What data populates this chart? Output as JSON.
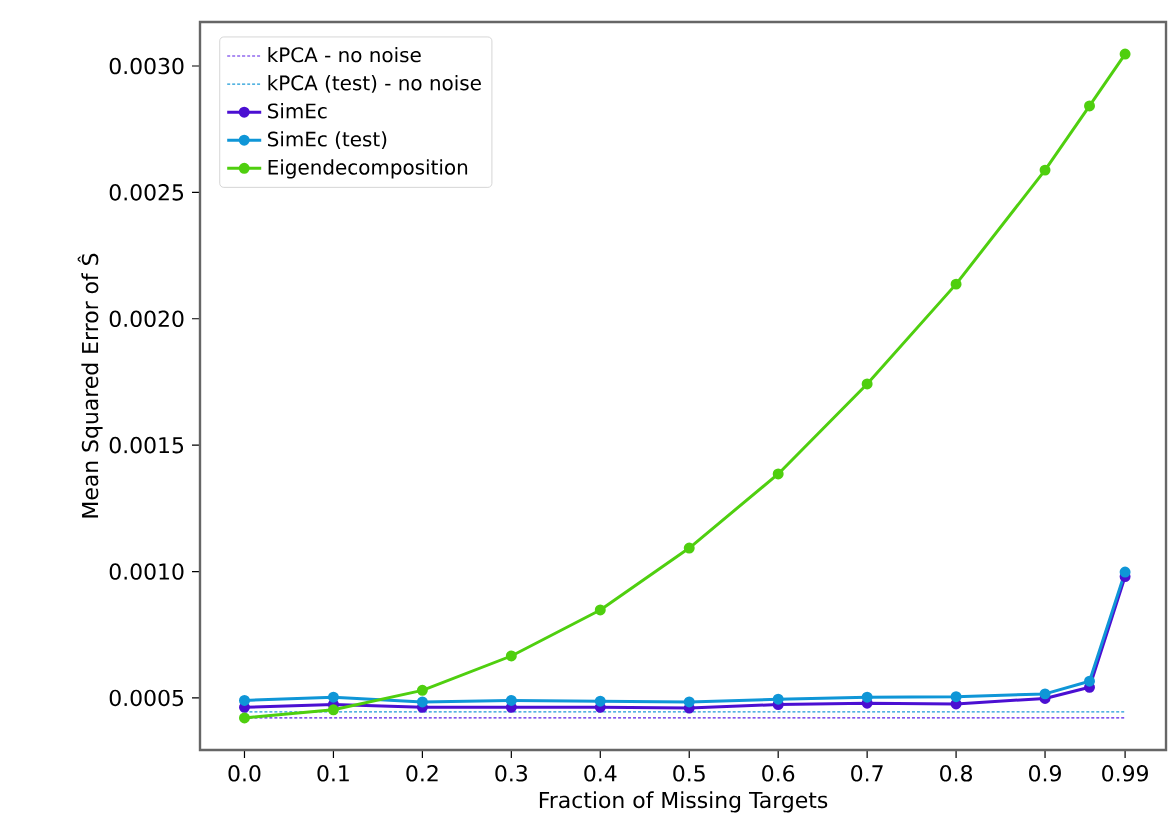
{
  "chart_data": {
    "type": "line",
    "xlabel": "Fraction of Missing Targets",
    "ylabel": "Mean Squared Error of Ŝ",
    "xlim": [
      -0.05,
      1.036
    ],
    "ylim": [
      0.000294,
      0.003174
    ],
    "xticks": [
      {
        "value": 0.0,
        "label": "0.0"
      },
      {
        "value": 0.1,
        "label": "0.1"
      },
      {
        "value": 0.2,
        "label": "0.2"
      },
      {
        "value": 0.3,
        "label": "0.3"
      },
      {
        "value": 0.4,
        "label": "0.4"
      },
      {
        "value": 0.5,
        "label": "0.5"
      },
      {
        "value": 0.6,
        "label": "0.6"
      },
      {
        "value": 0.7,
        "label": "0.7"
      },
      {
        "value": 0.8,
        "label": "0.8"
      },
      {
        "value": 0.9,
        "label": "0.9"
      },
      {
        "value": 0.99,
        "label": "0.99"
      }
    ],
    "yticks": [
      0.0005,
      {
        "value": 0.001,
        "label": "0.0010"
      },
      {
        "value": 0.0015,
        "label": "0.0015"
      },
      {
        "value": 0.002,
        "label": "0.0020"
      },
      {
        "value": 0.0025,
        "label": "0.0025"
      },
      {
        "value": 0.003,
        "label": "0.0030"
      }
    ],
    "legend": "top left",
    "grid": false,
    "series": [
      {
        "name": "kPCA - no noise",
        "color": "#5a1ee6",
        "x": [
          0.0,
          0.99
        ],
        "values": [
          0.000421,
          0.000421
        ],
        "marker": "none",
        "line_style": "dashed"
      },
      {
        "name": "kPCA (test) - no noise",
        "color": "#1e9bd7",
        "x": [
          0.0,
          0.99
        ],
        "values": [
          0.000445,
          0.000445
        ],
        "marker": "none",
        "line_style": "dashed"
      },
      {
        "name": "SimEc",
        "color": "#4b0fd2",
        "x": [
          0.0,
          0.1,
          0.2,
          0.3,
          0.4,
          0.5,
          0.6,
          0.7,
          0.8,
          0.9,
          0.95,
          0.99
        ],
        "values": [
          0.000463,
          0.000474,
          0.000463,
          0.000463,
          0.000463,
          0.00046,
          0.000474,
          0.000479,
          0.000476,
          0.000498,
          0.000542,
          0.00098
        ],
        "marker": "circle",
        "line_style": "solid"
      },
      {
        "name": "SimEc (test)",
        "color": "#0f96d7",
        "x": [
          0.0,
          0.1,
          0.2,
          0.3,
          0.4,
          0.5,
          0.6,
          0.7,
          0.8,
          0.9,
          0.95,
          0.99
        ],
        "values": [
          0.00049,
          0.000503,
          0.000484,
          0.00049,
          0.000487,
          0.000484,
          0.000495,
          0.000503,
          0.000505,
          0.000516,
          0.000566,
          0.000998
        ],
        "marker": "circle",
        "line_style": "solid"
      },
      {
        "name": "Eigendecomposition",
        "color": "#4fcf0f",
        "x": [
          0.0,
          0.1,
          0.2,
          0.3,
          0.4,
          0.5,
          0.6,
          0.7,
          0.8,
          0.9,
          0.95,
          0.99
        ],
        "values": [
          0.000421,
          0.000453,
          0.00053,
          0.000666,
          0.000848,
          0.001093,
          0.001386,
          0.001742,
          0.002137,
          0.002588,
          0.002842,
          0.003047
        ],
        "marker": "circle",
        "line_style": "solid"
      }
    ]
  }
}
